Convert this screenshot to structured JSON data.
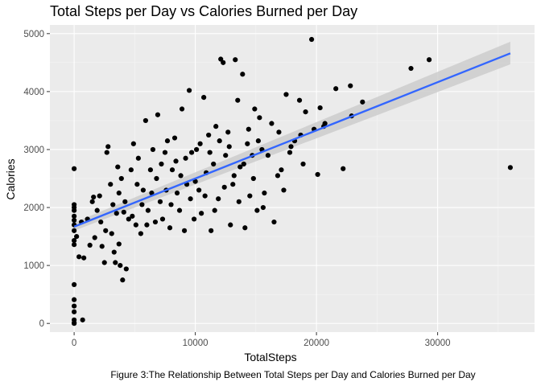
{
  "chart_data": {
    "type": "scatter",
    "title": "Total Steps per Day vs Calories Burned per Day",
    "xlabel": "TotalSteps",
    "ylabel": "Calories",
    "caption": "Figure 3:The Relationship Between Total Steps per Day and Calories Burned per Day",
    "xlim": [
      -2000,
      38000
    ],
    "ylim": [
      -150,
      5150
    ],
    "x_ticks": [
      0,
      10000,
      20000,
      30000
    ],
    "x_tick_labels": [
      "0",
      "10000",
      "20000",
      "30000"
    ],
    "y_ticks": [
      0,
      1000,
      2000,
      3000,
      4000,
      5000
    ],
    "y_tick_labels": [
      "0",
      "1000",
      "2000",
      "3000",
      "4000",
      "5000"
    ],
    "grid": true,
    "smooth_line": {
      "method": "linear",
      "x": [
        0,
        36000
      ],
      "y": [
        1670,
        4660
      ],
      "color": "#3366FF",
      "band_color": "#cccccc",
      "band_at_x_min": [
        1600,
        1740
      ],
      "band_at_x_max": [
        4470,
        4860
      ]
    },
    "point_color": "#000000",
    "panel_color": "#EBEBEB",
    "points": [
      [
        0,
        0
      ],
      [
        0,
        10
      ],
      [
        0,
        60
      ],
      [
        0,
        200
      ],
      [
        0,
        300
      ],
      [
        0,
        410
      ],
      [
        0,
        670
      ],
      [
        0,
        1360
      ],
      [
        0,
        1430
      ],
      [
        0,
        1600
      ],
      [
        0,
        1700
      ],
      [
        0,
        1780
      ],
      [
        0,
        1850
      ],
      [
        0,
        1950
      ],
      [
        0,
        2000
      ],
      [
        0,
        2050
      ],
      [
        0,
        2670
      ],
      [
        700,
        60
      ],
      [
        200,
        1500
      ],
      [
        400,
        1150
      ],
      [
        600,
        1750
      ],
      [
        800,
        1130
      ],
      [
        1100,
        1800
      ],
      [
        1300,
        1350
      ],
      [
        1500,
        2100
      ],
      [
        1700,
        1480
      ],
      [
        1900,
        1950
      ],
      [
        2100,
        2200
      ],
      [
        2300,
        1330
      ],
      [
        2500,
        1050
      ],
      [
        2700,
        2950
      ],
      [
        2800,
        3050
      ],
      [
        3000,
        2400
      ],
      [
        3100,
        1550
      ],
      [
        3300,
        1230
      ],
      [
        3400,
        1050
      ],
      [
        3500,
        1900
      ],
      [
        3600,
        2700
      ],
      [
        3700,
        1370
      ],
      [
        3800,
        1000
      ],
      [
        3900,
        2500
      ],
      [
        4000,
        750
      ],
      [
        4100,
        1920
      ],
      [
        4300,
        940
      ],
      [
        4500,
        1800
      ],
      [
        4700,
        2650
      ],
      [
        4900,
        3100
      ],
      [
        5100,
        1700
      ],
      [
        5300,
        2850
      ],
      [
        5500,
        1550
      ],
      [
        5700,
        2300
      ],
      [
        5900,
        3500
      ],
      [
        6100,
        1950
      ],
      [
        6300,
        2650
      ],
      [
        6500,
        3000
      ],
      [
        6700,
        1750
      ],
      [
        6900,
        3600
      ],
      [
        7100,
        2100
      ],
      [
        7300,
        1800
      ],
      [
        7500,
        2950
      ],
      [
        7700,
        3150
      ],
      [
        7900,
        1650
      ],
      [
        8100,
        2650
      ],
      [
        8300,
        3200
      ],
      [
        8500,
        2250
      ],
      [
        8700,
        1950
      ],
      [
        8900,
        3700
      ],
      [
        9100,
        1600
      ],
      [
        9300,
        2400
      ],
      [
        9500,
        4020
      ],
      [
        9700,
        2950
      ],
      [
        9900,
        1800
      ],
      [
        10100,
        3000
      ],
      [
        10300,
        2300
      ],
      [
        10500,
        1900
      ],
      [
        10700,
        3900
      ],
      [
        10900,
        2600
      ],
      [
        11100,
        3250
      ],
      [
        11300,
        1600
      ],
      [
        11500,
        2750
      ],
      [
        11700,
        3400
      ],
      [
        11900,
        2150
      ],
      [
        12100,
        4560
      ],
      [
        12300,
        4500
      ],
      [
        12500,
        2900
      ],
      [
        12700,
        3300
      ],
      [
        12900,
        1700
      ],
      [
        13100,
        2400
      ],
      [
        13300,
        4550
      ],
      [
        13500,
        3850
      ],
      [
        13700,
        2700
      ],
      [
        13900,
        4300
      ],
      [
        14100,
        1650
      ],
      [
        14300,
        3100
      ],
      [
        14500,
        2200
      ],
      [
        14700,
        2900
      ],
      [
        14900,
        3700
      ],
      [
        15100,
        1950
      ],
      [
        15300,
        3550
      ],
      [
        15500,
        3000
      ],
      [
        15700,
        2250
      ],
      [
        16300,
        3450
      ],
      [
        16500,
        1750
      ],
      [
        16900,
        3300
      ],
      [
        17100,
        2650
      ],
      [
        17300,
        2300
      ],
      [
        17500,
        3950
      ],
      [
        17900,
        3050
      ],
      [
        18200,
        3150
      ],
      [
        18600,
        3850
      ],
      [
        18900,
        2750
      ],
      [
        19100,
        3650
      ],
      [
        19600,
        4900
      ],
      [
        20100,
        2570
      ],
      [
        20300,
        3720
      ],
      [
        20600,
        3400
      ],
      [
        21600,
        4050
      ],
      [
        22200,
        2670
      ],
      [
        22800,
        4100
      ],
      [
        22900,
        3580
      ],
      [
        23800,
        3820
      ],
      [
        27800,
        4400
      ],
      [
        29300,
        4550
      ],
      [
        36000,
        2690
      ],
      [
        1600,
        2180
      ],
      [
        2200,
        1750
      ],
      [
        2600,
        1600
      ],
      [
        3200,
        2050
      ],
      [
        3700,
        2250
      ],
      [
        4200,
        2100
      ],
      [
        4800,
        1850
      ],
      [
        5200,
        2400
      ],
      [
        5600,
        2050
      ],
      [
        6000,
        1700
      ],
      [
        6400,
        2250
      ],
      [
        6800,
        2500
      ],
      [
        7200,
        2750
      ],
      [
        7600,
        2300
      ],
      [
        8000,
        2050
      ],
      [
        8400,
        2800
      ],
      [
        8800,
        2550
      ],
      [
        9200,
        2850
      ],
      [
        9600,
        2150
      ],
      [
        10000,
        2450
      ],
      [
        10400,
        3100
      ],
      [
        10800,
        2200
      ],
      [
        11200,
        2950
      ],
      [
        11600,
        1950
      ],
      [
        12000,
        3150
      ],
      [
        12400,
        2350
      ],
      [
        12800,
        3050
      ],
      [
        13200,
        2550
      ],
      [
        13600,
        2100
      ],
      [
        14000,
        2750
      ],
      [
        14400,
        3350
      ],
      [
        14800,
        2500
      ],
      [
        15200,
        3150
      ],
      [
        15600,
        2000
      ],
      [
        16000,
        2900
      ],
      [
        16800,
        2550
      ],
      [
        17800,
        2950
      ],
      [
        18700,
        3250
      ],
      [
        19800,
        3350
      ],
      [
        20700,
        3450
      ]
    ]
  }
}
